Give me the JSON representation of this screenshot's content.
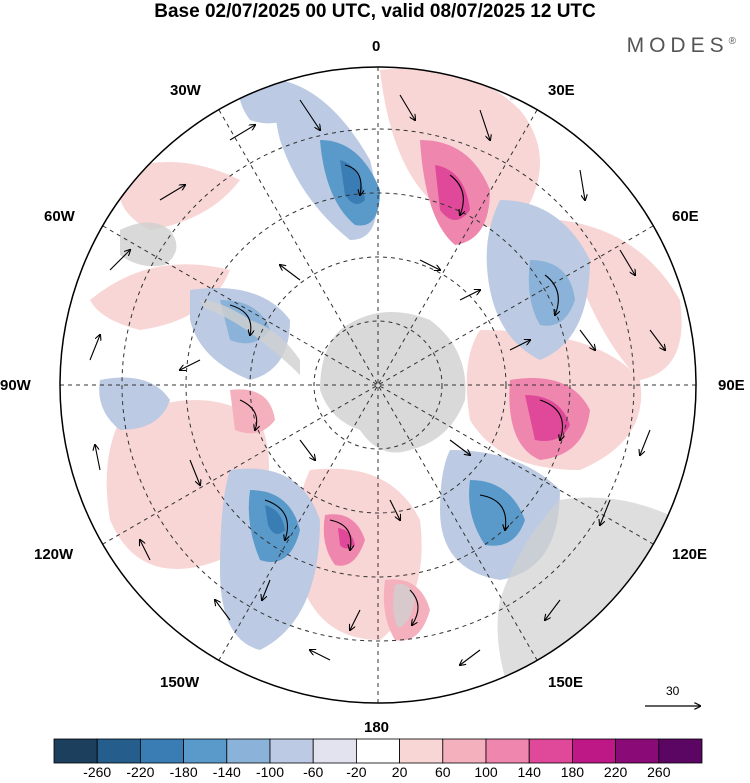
{
  "title": "Base 02/07/2025 00 UTC, valid 08/07/2025 12 UTC",
  "brand": "MODES",
  "brand_mark": "®",
  "lon_labels": {
    "l0": "0",
    "l30e": "30E",
    "l60e": "60E",
    "l90e": "90E",
    "l120e": "120E",
    "l150e": "150E",
    "l180": "180",
    "l150w": "150W",
    "l120w": "120W",
    "l90w": "90W",
    "l60w": "60W",
    "l30w": "30W"
  },
  "reference_vector_label": "30",
  "colorbar": {
    "labels": [
      "-260",
      "-220",
      "-180",
      "-140",
      "-100",
      "-60",
      "-20",
      "20",
      "60",
      "100",
      "140",
      "180",
      "220",
      "260"
    ],
    "colors": [
      "#1d3f5e",
      "#255d8c",
      "#3a7cb4",
      "#5a9acb",
      "#8bb2d8",
      "#bccbe3",
      "#e3e3ef",
      "#ffffff",
      "#f9d6d6",
      "#f5b0bd",
      "#ef86ae",
      "#e0489a",
      "#be1887",
      "#8a0a78",
      "#5a0662"
    ]
  },
  "map_colors": {
    "land": "#d0d0d0",
    "grid": "#333333"
  }
}
